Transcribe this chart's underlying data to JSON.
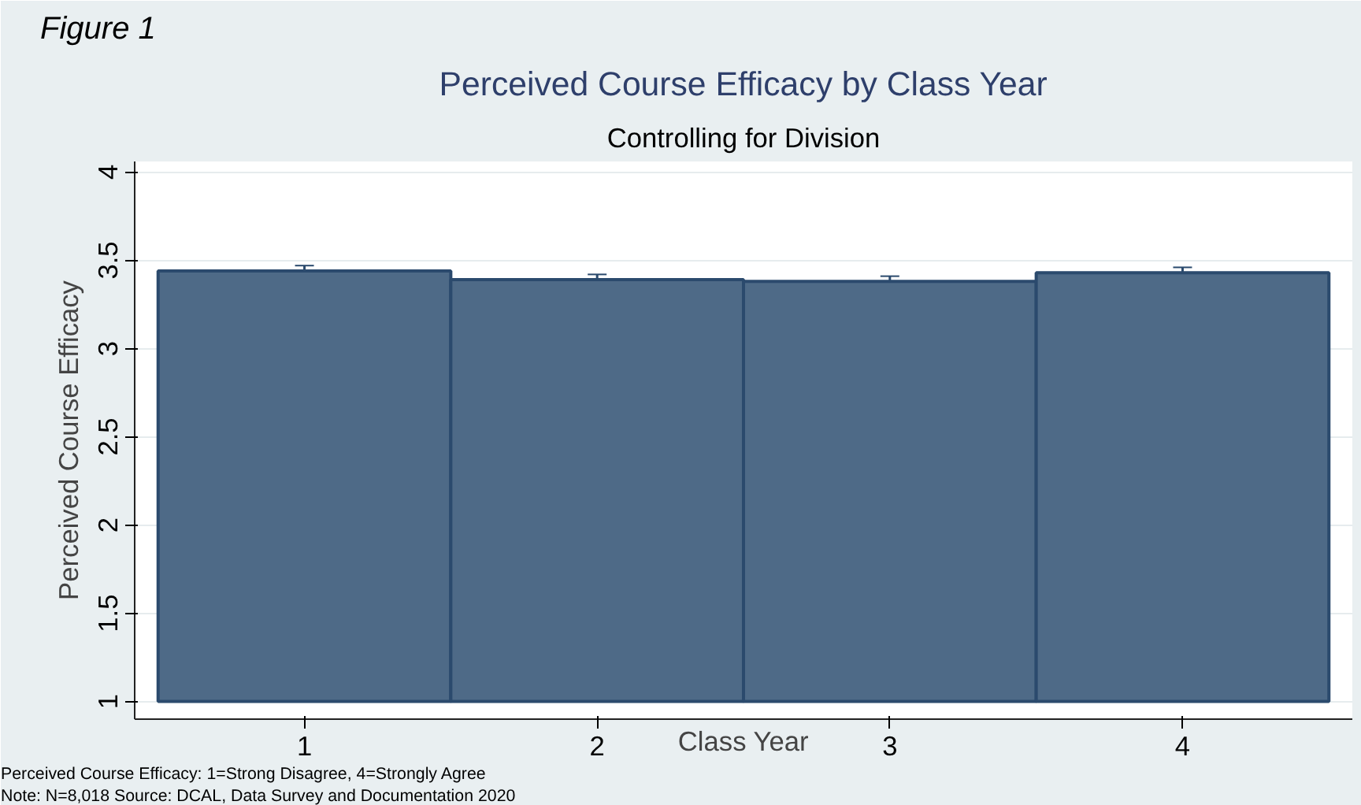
{
  "chart_data": {
    "type": "bar",
    "title": "Perceived Course Efficacy by Class Year",
    "subtitle": "Controlling for Division",
    "xlabel": "Class Year",
    "ylabel": "Perceived Course Efficacy",
    "x": [
      1,
      2,
      3,
      4
    ],
    "base": [
      1,
      1,
      1,
      1
    ],
    "values": [
      2.44,
      2.39,
      2.38,
      2.43
    ],
    "errors": [
      0.03,
      0.03,
      0.03,
      0.03
    ],
    "color": "#4e6a87",
    "xlim": [
      0.42,
      4.58
    ],
    "xticks": [
      1,
      2,
      3,
      4
    ],
    "ylim": [
      0.9,
      4.06
    ],
    "yticks": [
      1,
      1.5,
      2,
      2.5,
      3,
      3.5,
      4
    ],
    "grid": "y",
    "annotations": [
      "Figure 1",
      "Perceived Course Efficacy: 1=Strong Disagree, 4=Strongly Agree",
      "Note: N=8,018  Source: DCAL, Data Survey and Documentation 2020"
    ]
  }
}
